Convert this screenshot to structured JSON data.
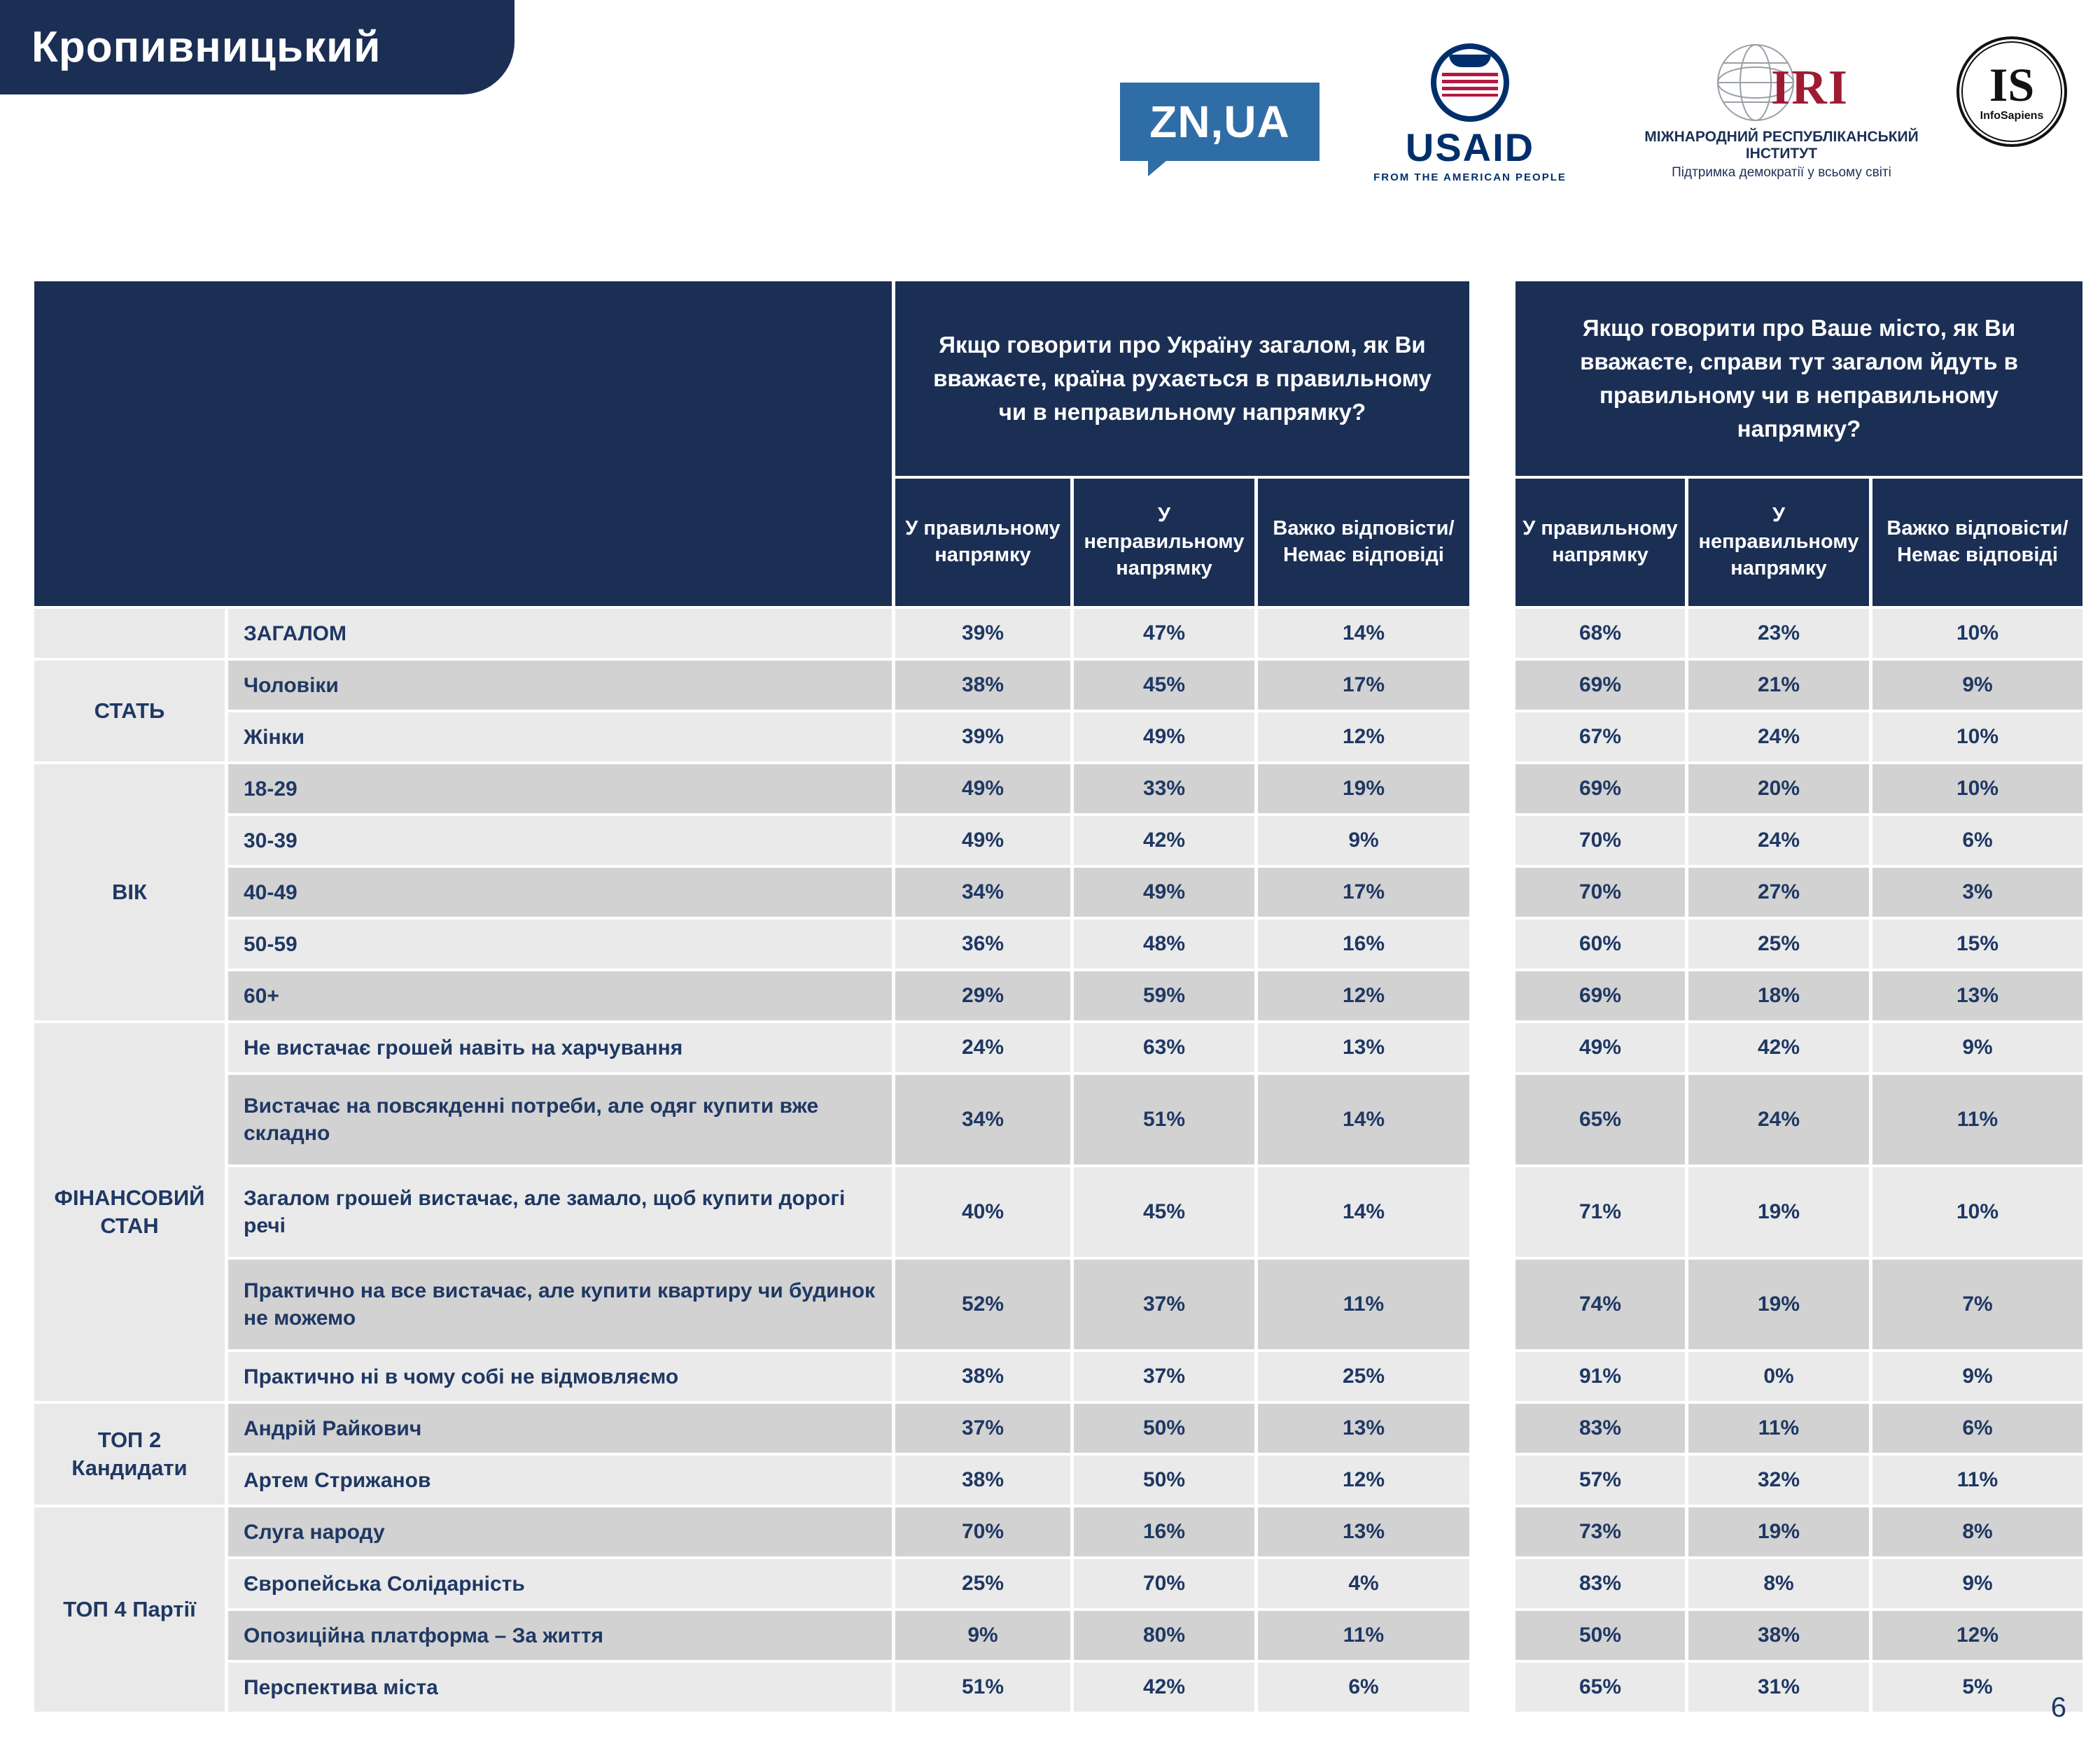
{
  "title": "Кропивницький",
  "page_number": "6",
  "logos": {
    "znua": "ZN,UA",
    "usaid": {
      "name": "USAID",
      "tagline": "FROM THE AMERICAN PEOPLE"
    },
    "iri": {
      "abbr": "IRI",
      "line1": "МІЖНАРОДНИЙ РЕСПУБЛІКАНСЬКИЙ ІНСТИТУТ",
      "line2": "Підтримка демократії у всьому світі"
    },
    "infosapiens": {
      "abbr": "IS",
      "name": "InfoSapiens"
    }
  },
  "colors": {
    "navy": "#1b2f55",
    "row_light": "#eaeaea",
    "row_dark": "#d2d2d2",
    "text": "#1f3864",
    "znua_blue": "#2f6da6",
    "iri_red": "#9e1b32"
  },
  "chart_data": {
    "type": "table",
    "questions": [
      "Якщо говорити про Україну загалом, як Ви вважаєте, країна рухається в правильному чи в неправильному напрямку?",
      "Якщо говорити про Ваше місто, як Ви вважаєте, справи тут загалом йдуть в правильному чи в неправильному напрямку?"
    ],
    "answer_options": [
      "У правильному напрямку",
      "У неправильному напрямку",
      "Важко відповісти/Немає відповіді"
    ],
    "groups": [
      {
        "label": "",
        "rows": [
          {
            "label": "ЗАГАЛОМ",
            "bold": true,
            "q1": [
              "39%",
              "47%",
              "14%"
            ],
            "q2": [
              "68%",
              "23%",
              "10%"
            ]
          }
        ]
      },
      {
        "label": "СТАТЬ",
        "rows": [
          {
            "label": "Чоловіки",
            "q1": [
              "38%",
              "45%",
              "17%"
            ],
            "q2": [
              "69%",
              "21%",
              "9%"
            ]
          },
          {
            "label": "Жінки",
            "q1": [
              "39%",
              "49%",
              "12%"
            ],
            "q2": [
              "67%",
              "24%",
              "10%"
            ]
          }
        ]
      },
      {
        "label": "ВІК",
        "rows": [
          {
            "label": "18-29",
            "q1": [
              "49%",
              "33%",
              "19%"
            ],
            "q2": [
              "69%",
              "20%",
              "10%"
            ]
          },
          {
            "label": "30-39",
            "q1": [
              "49%",
              "42%",
              "9%"
            ],
            "q2": [
              "70%",
              "24%",
              "6%"
            ]
          },
          {
            "label": "40-49",
            "q1": [
              "34%",
              "49%",
              "17%"
            ],
            "q2": [
              "70%",
              "27%",
              "3%"
            ]
          },
          {
            "label": "50-59",
            "q1": [
              "36%",
              "48%",
              "16%"
            ],
            "q2": [
              "60%",
              "25%",
              "15%"
            ]
          },
          {
            "label": "60+",
            "q1": [
              "29%",
              "59%",
              "12%"
            ],
            "q2": [
              "69%",
              "18%",
              "13%"
            ]
          }
        ]
      },
      {
        "label": "ФІНАНСОВИЙ СТАН",
        "rows": [
          {
            "label": "Не вистачає грошей навіть на харчування",
            "q1": [
              "24%",
              "63%",
              "13%"
            ],
            "q2": [
              "49%",
              "42%",
              "9%"
            ]
          },
          {
            "label": "Вистачає на повсякденні потреби, але одяг купити вже складно",
            "tall": true,
            "q1": [
              "34%",
              "51%",
              "14%"
            ],
            "q2": [
              "65%",
              "24%",
              "11%"
            ]
          },
          {
            "label": "Загалом грошей вистачає, але замало, щоб купити дорогі речі",
            "tall": true,
            "q1": [
              "40%",
              "45%",
              "14%"
            ],
            "q2": [
              "71%",
              "19%",
              "10%"
            ]
          },
          {
            "label": "Практично на все вистачає, але купити квартиру чи будинок не можемо",
            "tall": true,
            "q1": [
              "52%",
              "37%",
              "11%"
            ],
            "q2": [
              "74%",
              "19%",
              "7%"
            ]
          },
          {
            "label": "Практично ні в чому собі не відмовляємо",
            "q1": [
              "38%",
              "37%",
              "25%"
            ],
            "q2": [
              "91%",
              "0%",
              "9%"
            ]
          }
        ]
      },
      {
        "label": "ТОП 2 Кандидати",
        "rows": [
          {
            "label": "Андрій Райкович",
            "q1": [
              "37%",
              "50%",
              "13%"
            ],
            "q2": [
              "83%",
              "11%",
              "6%"
            ]
          },
          {
            "label": "Артем Стрижанов",
            "q1": [
              "38%",
              "50%",
              "12%"
            ],
            "q2": [
              "57%",
              "32%",
              "11%"
            ]
          }
        ]
      },
      {
        "label": "ТОП 4 Партії",
        "rows": [
          {
            "label": "Слуга народу",
            "q1": [
              "70%",
              "16%",
              "13%"
            ],
            "q2": [
              "73%",
              "19%",
              "8%"
            ]
          },
          {
            "label": "Європейська Солідарність",
            "q1": [
              "25%",
              "70%",
              "4%"
            ],
            "q2": [
              "83%",
              "8%",
              "9%"
            ]
          },
          {
            "label": "Опозиційна платформа – За життя",
            "q1": [
              "9%",
              "80%",
              "11%"
            ],
            "q2": [
              "50%",
              "38%",
              "12%"
            ]
          },
          {
            "label": "Перспектива міста",
            "q1": [
              "51%",
              "42%",
              "6%"
            ],
            "q2": [
              "65%",
              "31%",
              "5%"
            ]
          }
        ]
      }
    ]
  }
}
